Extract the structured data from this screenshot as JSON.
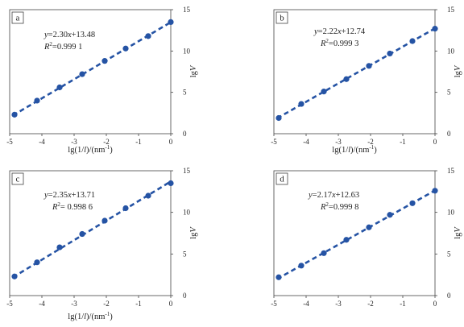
{
  "figure": {
    "x_axis_label_parts": [
      "lg(1/",
      "l",
      ")/(nm",
      "-1",
      ")"
    ],
    "y_axis_label_parts": [
      "lg",
      "V"
    ]
  },
  "colors": {
    "series": "#2553a4",
    "axis": "#444444",
    "frame": "#444444"
  },
  "chart_data": [
    {
      "panel": "a",
      "type": "scatter",
      "equation": {
        "y": "y",
        "text": "=2.30",
        "x": "x",
        "rest": "+13.48"
      },
      "r2": {
        "r": "R",
        "sup": "2",
        "text": "=0.999 1"
      },
      "x": [
        -4.85,
        -4.15,
        -3.45,
        -2.75,
        -2.05,
        -1.4,
        -0.7,
        0
      ],
      "y": [
        2.3,
        4.0,
        5.6,
        7.2,
        8.8,
        10.3,
        11.8,
        13.5
      ],
      "fit": {
        "slope": 2.3,
        "intercept": 13.48
      },
      "xticks": [
        "-5",
        "-4",
        "-3",
        "-2",
        "-1",
        "0"
      ],
      "yticks": [
        "0",
        "5",
        "10",
        "15"
      ],
      "xlim": [
        -5,
        0
      ],
      "ylim": [
        0,
        15
      ],
      "show_x_axis_label": true,
      "show_y_axis_label": true
    },
    {
      "panel": "b",
      "type": "scatter",
      "equation": {
        "y": "y",
        "text": "=2.22",
        "x": "x",
        "rest": "+12.74"
      },
      "r2": {
        "r": "R",
        "sup": "2",
        "text": "=0.999 3"
      },
      "x": [
        -4.85,
        -4.15,
        -3.45,
        -2.75,
        -2.05,
        -1.4,
        -0.7,
        0
      ],
      "y": [
        1.9,
        3.6,
        5.1,
        6.6,
        8.2,
        9.7,
        11.2,
        12.7
      ],
      "fit": {
        "slope": 2.22,
        "intercept": 12.74
      },
      "xticks": [
        "-5",
        "-4",
        "-3",
        "-2",
        "-1",
        "0"
      ],
      "yticks": [
        "0",
        "5",
        "10",
        "15"
      ],
      "xlim": [
        -5,
        0
      ],
      "ylim": [
        0,
        15
      ],
      "show_x_axis_label": true,
      "show_y_axis_label": true
    },
    {
      "panel": "c",
      "type": "scatter",
      "equation": {
        "y": "y",
        "text": "=2.35",
        "x": "x",
        "rest": "+13.71"
      },
      "r2": {
        "r": "R",
        "sup": "2",
        "text": "= 0.998 6"
      },
      "x": [
        -4.85,
        -4.15,
        -3.45,
        -2.75,
        -2.05,
        -1.4,
        -0.7,
        0
      ],
      "y": [
        2.3,
        4.0,
        5.8,
        7.4,
        9.0,
        10.5,
        12.0,
        13.5
      ],
      "fit": {
        "slope": 2.35,
        "intercept": 13.71
      },
      "xticks": [
        "-5",
        "-4",
        "-3",
        "-2",
        "-1",
        "0"
      ],
      "yticks": [
        "0",
        "5",
        "10",
        "15"
      ],
      "xlim": [
        -5,
        0
      ],
      "ylim": [
        0,
        15
      ],
      "show_x_axis_label": true,
      "show_y_axis_label": true
    },
    {
      "panel": "d",
      "type": "scatter",
      "equation": {
        "y": "y",
        "text": "=2.17",
        "x": "x",
        "rest": "+12.63"
      },
      "r2": {
        "r": "R",
        "sup": "2",
        "text": "=0.999 8"
      },
      "x": [
        -4.85,
        -4.15,
        -3.45,
        -2.75,
        -2.05,
        -1.4,
        -0.7,
        0
      ],
      "y": [
        2.2,
        3.6,
        5.1,
        6.7,
        8.2,
        9.7,
        11.1,
        12.6
      ],
      "fit": {
        "slope": 2.17,
        "intercept": 12.63
      },
      "xticks": [
        "-5",
        "-4",
        "-3",
        "-2",
        "-1",
        "0"
      ],
      "yticks": [
        "0",
        "5",
        "10",
        "15"
      ],
      "xlim": [
        -5,
        0
      ],
      "ylim": [
        0,
        15
      ],
      "show_x_axis_label": false,
      "show_y_axis_label": true
    }
  ]
}
